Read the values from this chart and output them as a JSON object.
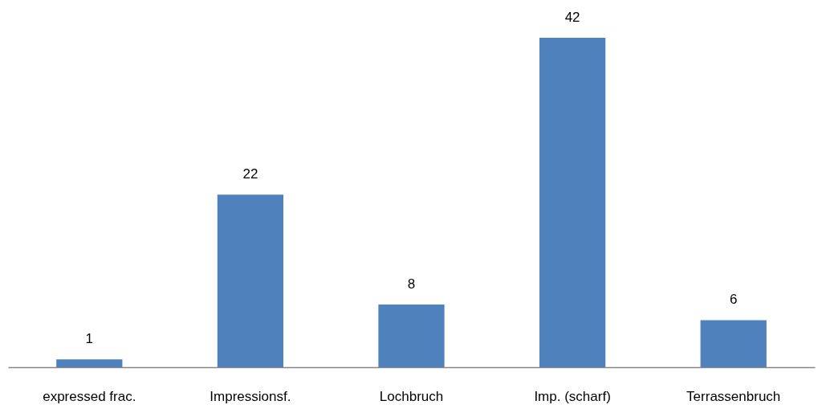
{
  "chart_data": {
    "type": "bar",
    "categories": [
      "expressed frac.",
      "Impressionsf.",
      "Lochbruch",
      "Imp. (scharf)",
      "Terrassenbruch"
    ],
    "values": [
      1,
      22,
      8,
      42,
      6
    ],
    "color": "#4f81bd",
    "data_labels": true
  }
}
